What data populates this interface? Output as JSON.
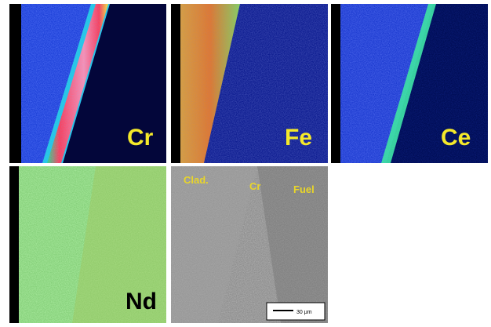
{
  "panels": [
    {
      "label": "Cr"
    },
    {
      "label": "Fe"
    },
    {
      "label": "Ce"
    },
    {
      "label": "Nd"
    },
    {
      "labels": [
        "Clad.",
        "Cr",
        "Fuel"
      ],
      "scale_bar": "30 μm"
    }
  ]
}
